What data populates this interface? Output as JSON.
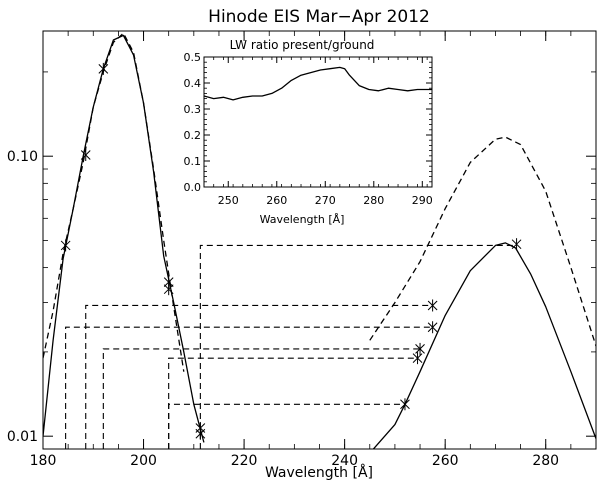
{
  "chart_data": [
    {
      "type": "line",
      "title": "Hinode EIS Mar−Apr 2012",
      "xlabel": "Wavelength [Å]",
      "ylabel": "",
      "xlim": [
        180,
        290
      ],
      "ylim": [
        0.009,
        0.28
      ],
      "y_scale": "log",
      "x_ticks": [
        180,
        200,
        220,
        240,
        260,
        280
      ],
      "y_ticks": [
        {
          "value": 0.01,
          "label": "0.01"
        },
        {
          "value": 0.1,
          "label": "0.10"
        }
      ],
      "series": [
        {
          "style": "dashed",
          "x": [
            180,
            182,
            184,
            186,
            188,
            190,
            192,
            194,
            196,
            198,
            200,
            202,
            204,
            206,
            208
          ],
          "y": [
            0.019,
            0.028,
            0.045,
            0.065,
            0.095,
            0.15,
            0.2,
            0.255,
            0.275,
            0.235,
            0.155,
            0.09,
            0.05,
            0.029,
            0.017
          ]
        },
        {
          "style": "solid",
          "x": [
            180,
            182,
            184,
            186,
            188,
            190,
            192,
            194,
            196,
            198,
            200,
            202,
            204,
            206,
            208,
            210,
            212
          ],
          "y": [
            0.01,
            0.022,
            0.043,
            0.065,
            0.1,
            0.15,
            0.205,
            0.26,
            0.27,
            0.23,
            0.155,
            0.088,
            0.044,
            0.03,
            0.02,
            0.013,
            0.0095
          ]
        },
        {
          "style": "dashed",
          "x": [
            245,
            250,
            255,
            260,
            265,
            270,
            272,
            275,
            280,
            285,
            290
          ],
          "y": [
            0.022,
            0.03,
            0.042,
            0.065,
            0.095,
            0.115,
            0.117,
            0.11,
            0.075,
            0.04,
            0.021
          ]
        },
        {
          "style": "solid",
          "x": [
            245,
            250,
            252,
            255,
            260,
            265,
            270,
            272,
            274,
            277,
            280,
            285,
            290
          ],
          "y": [
            0.0087,
            0.011,
            0.013,
            0.017,
            0.027,
            0.039,
            0.048,
            0.049,
            0.047,
            0.038,
            0.029,
            0.017,
            0.0098
          ]
        }
      ],
      "markers": [
        {
          "x": 184.5,
          "y": 0.048
        },
        {
          "x": 188.5,
          "y": 0.101
        },
        {
          "x": 192,
          "y": 0.205
        },
        {
          "x": 205,
          "y": 0.0355
        },
        {
          "x": 205,
          "y": 0.0335
        },
        {
          "x": 211.3,
          "y": 0.0107
        },
        {
          "x": 211.3,
          "y": 0.0102
        },
        {
          "x": 252,
          "y": 0.013
        },
        {
          "x": 254.5,
          "y": 0.019
        },
        {
          "x": 255,
          "y": 0.0205
        },
        {
          "x": 257.5,
          "y": 0.0245
        },
        {
          "x": 257.5,
          "y": 0.0293
        },
        {
          "x": 274.2,
          "y": 0.0485
        }
      ],
      "connectors": [
        {
          "x1": 184.5,
          "x2": 257.5,
          "y": 0.0245
        },
        {
          "x1": 188.5,
          "x2": 257.5,
          "y": 0.0293
        },
        {
          "x1": 192,
          "x2": 255,
          "y": 0.0205
        },
        {
          "x1": 205,
          "x2": 254.5,
          "y": 0.019
        },
        {
          "x1": 205,
          "x2": 252,
          "y": 0.013
        },
        {
          "x1": 211.3,
          "x2": 274.2,
          "y": 0.048
        }
      ]
    },
    {
      "type": "line",
      "title": "LW ratio present/ground",
      "xlabel": "Wavelength [Å]",
      "ylabel": "",
      "xlim": [
        245,
        292
      ],
      "ylim": [
        0.0,
        0.5
      ],
      "x_ticks": [
        250,
        260,
        270,
        280,
        290
      ],
      "y_ticks": [
        0.0,
        0.1,
        0.2,
        0.3,
        0.4,
        0.5
      ],
      "series": [
        {
          "style": "solid",
          "x": [
            245,
            247,
            249,
            251,
            253,
            255,
            257,
            259,
            261,
            263,
            265,
            267,
            269,
            271,
            273,
            274,
            275,
            276,
            277,
            279,
            281,
            283,
            285,
            287,
            289,
            291,
            292
          ],
          "y": [
            0.35,
            0.34,
            0.345,
            0.335,
            0.345,
            0.35,
            0.35,
            0.36,
            0.38,
            0.41,
            0.43,
            0.44,
            0.45,
            0.455,
            0.46,
            0.455,
            0.43,
            0.41,
            0.39,
            0.375,
            0.37,
            0.38,
            0.375,
            0.37,
            0.375,
            0.375,
            0.375
          ]
        }
      ]
    }
  ]
}
